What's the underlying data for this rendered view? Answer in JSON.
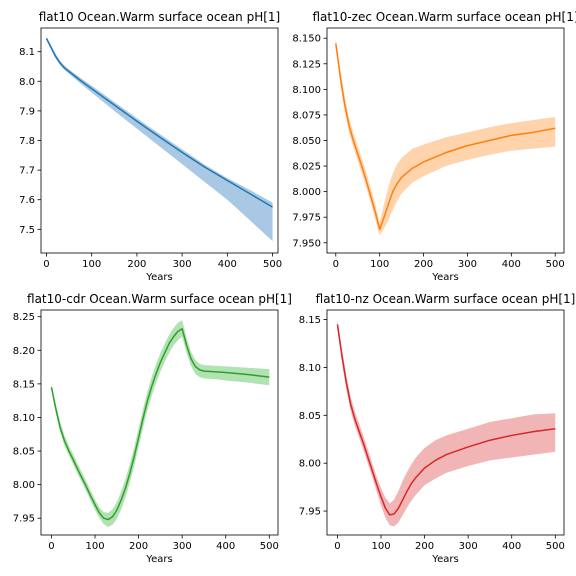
{
  "chart_data": [
    {
      "type": "line",
      "title": "flat10 Ocean.Warm surface ocean pH[1]",
      "xlabel": "Years",
      "ylabel": "",
      "xlim": [
        -12,
        512
      ],
      "ylim": [
        7.42,
        8.18
      ],
      "xticks": [
        0,
        100,
        200,
        300,
        400,
        500
      ],
      "yticks": [
        7.5,
        7.6,
        7.7,
        7.8,
        7.9,
        8.0,
        8.1
      ],
      "ytick_labels": [
        "7.5",
        "7.6",
        "7.7",
        "7.8",
        "7.9",
        "8.0",
        "8.1"
      ],
      "grid": false,
      "series": [
        {
          "color": "#1f77b4",
          "band_color": "#a8c8e3",
          "x": [
            0,
            10,
            20,
            30,
            40,
            50,
            75,
            100,
            150,
            200,
            250,
            300,
            350,
            400,
            450,
            500
          ],
          "values": [
            8.145,
            8.115,
            8.085,
            8.062,
            8.045,
            8.033,
            8.003,
            7.975,
            7.92,
            7.865,
            7.812,
            7.76,
            7.71,
            7.665,
            7.62,
            7.575
          ],
          "lower": [
            8.14,
            8.108,
            8.078,
            8.055,
            8.038,
            8.025,
            7.993,
            7.962,
            7.9,
            7.84,
            7.78,
            7.72,
            7.66,
            7.6,
            7.53,
            7.46
          ],
          "upper": [
            8.15,
            8.122,
            8.093,
            8.07,
            8.053,
            8.04,
            8.012,
            7.985,
            7.93,
            7.875,
            7.822,
            7.77,
            7.718,
            7.673,
            7.633,
            7.59
          ]
        }
      ]
    },
    {
      "type": "line",
      "title": "flat10-zec Ocean.Warm surface ocean pH[1]",
      "xlabel": "Years",
      "ylabel": "",
      "xlim": [
        -20,
        520
      ],
      "ylim": [
        7.94,
        8.16
      ],
      "xticks": [
        0,
        100,
        200,
        300,
        400,
        500
      ],
      "yticks": [
        7.95,
        7.975,
        8.0,
        8.025,
        8.05,
        8.075,
        8.1,
        8.125,
        8.15
      ],
      "ytick_labels": [
        "7.950",
        "7.975",
        "8.000",
        "8.025",
        "8.050",
        "8.075",
        "8.100",
        "8.125",
        "8.150"
      ],
      "grid": false,
      "series": [
        {
          "color": "#ff7f0e",
          "band_color": "#ffd4ad",
          "x": [
            0,
            10,
            20,
            30,
            40,
            50,
            60,
            70,
            80,
            90,
            100,
            110,
            120,
            130,
            140,
            150,
            175,
            200,
            250,
            300,
            350,
            400,
            450,
            500
          ],
          "values": [
            8.145,
            8.113,
            8.086,
            8.065,
            8.05,
            8.037,
            8.024,
            8.01,
            7.995,
            7.98,
            7.963,
            7.975,
            7.988,
            8.0,
            8.008,
            8.014,
            8.023,
            8.029,
            8.038,
            8.045,
            8.05,
            8.055,
            8.058,
            8.062
          ],
          "lower": [
            8.14,
            8.106,
            8.079,
            8.058,
            8.043,
            8.03,
            8.017,
            8.003,
            7.988,
            7.973,
            7.957,
            7.964,
            7.972,
            7.982,
            7.991,
            7.998,
            8.009,
            8.015,
            8.025,
            8.031,
            8.036,
            8.04,
            8.042,
            8.044
          ],
          "upper": [
            8.15,
            8.12,
            8.094,
            8.073,
            8.058,
            8.045,
            8.032,
            8.018,
            8.003,
            7.988,
            7.97,
            7.988,
            8.005,
            8.018,
            8.027,
            8.033,
            8.042,
            8.046,
            8.053,
            8.058,
            8.063,
            8.067,
            8.07,
            8.073
          ]
        }
      ]
    },
    {
      "type": "line",
      "title": "flat10-cdr Ocean.Warm surface ocean pH[1]",
      "xlabel": "Years",
      "ylabel": "",
      "xlim": [
        -24,
        520
      ],
      "ylim": [
        7.925,
        8.26
      ],
      "xticks": [
        0,
        100,
        200,
        300,
        400,
        500
      ],
      "yticks": [
        7.95,
        8.0,
        8.05,
        8.1,
        8.15,
        8.2,
        8.25
      ],
      "ytick_labels": [
        "7.95",
        "8.00",
        "8.05",
        "8.10",
        "8.15",
        "8.20",
        "8.25"
      ],
      "grid": false,
      "series": [
        {
          "color": "#2ca02c",
          "band_color": "#b2e2b2",
          "x": [
            0,
            10,
            20,
            30,
            40,
            50,
            60,
            70,
            80,
            90,
            100,
            110,
            120,
            130,
            140,
            150,
            160,
            170,
            180,
            190,
            200,
            210,
            220,
            230,
            240,
            250,
            260,
            270,
            280,
            290,
            300,
            310,
            320,
            330,
            340,
            350,
            375,
            400,
            450,
            500
          ],
          "values": [
            8.145,
            8.113,
            8.085,
            8.065,
            8.05,
            8.037,
            8.023,
            8.01,
            7.997,
            7.983,
            7.97,
            7.958,
            7.95,
            7.948,
            7.952,
            7.962,
            7.977,
            7.995,
            8.017,
            8.042,
            8.07,
            8.098,
            8.124,
            8.146,
            8.165,
            8.182,
            8.196,
            8.21,
            8.22,
            8.228,
            8.232,
            8.208,
            8.188,
            8.176,
            8.171,
            8.169,
            8.168,
            8.167,
            8.164,
            8.16
          ],
          "lower": [
            8.14,
            8.106,
            8.078,
            8.058,
            8.043,
            8.03,
            8.016,
            8.003,
            7.99,
            7.976,
            7.962,
            7.95,
            7.941,
            7.937,
            7.94,
            7.949,
            7.963,
            7.981,
            8.003,
            8.028,
            8.056,
            8.084,
            8.11,
            8.132,
            8.151,
            8.168,
            8.183,
            8.196,
            8.207,
            8.215,
            8.22,
            8.196,
            8.177,
            8.165,
            8.16,
            8.158,
            8.157,
            8.155,
            8.152,
            8.148
          ],
          "upper": [
            8.15,
            8.12,
            8.093,
            8.073,
            8.058,
            8.045,
            8.031,
            8.018,
            8.005,
            7.991,
            7.978,
            7.966,
            7.959,
            7.958,
            7.963,
            7.974,
            7.99,
            8.009,
            8.031,
            8.056,
            8.084,
            8.112,
            8.138,
            8.16,
            8.179,
            8.196,
            8.21,
            8.223,
            8.233,
            8.241,
            8.245,
            8.219,
            8.198,
            8.186,
            8.18,
            8.178,
            8.177,
            8.176,
            8.174,
            8.172
          ]
        }
      ]
    },
    {
      "type": "line",
      "title": "flat10-nz Ocean.Warm surface ocean pH[1]",
      "xlabel": "Years",
      "ylabel": "",
      "xlim": [
        -24,
        520
      ],
      "ylim": [
        7.925,
        8.16
      ],
      "xticks": [
        0,
        100,
        200,
        300,
        400,
        500
      ],
      "yticks": [
        7.95,
        8.0,
        8.05,
        8.1,
        8.15
      ],
      "ytick_labels": [
        "7.95",
        "8.00",
        "8.05",
        "8.10",
        "8.15"
      ],
      "grid": false,
      "series": [
        {
          "color": "#d62728",
          "band_color": "#f1b5b6",
          "x": [
            0,
            10,
            20,
            30,
            40,
            50,
            60,
            70,
            80,
            90,
            100,
            110,
            120,
            130,
            140,
            150,
            160,
            170,
            180,
            200,
            225,
            250,
            300,
            350,
            400,
            450,
            500
          ],
          "values": [
            8.145,
            8.113,
            8.085,
            8.062,
            8.046,
            8.033,
            8.02,
            8.006,
            7.992,
            7.978,
            7.965,
            7.953,
            7.946,
            7.947,
            7.953,
            7.962,
            7.971,
            7.979,
            7.985,
            7.995,
            8.003,
            8.009,
            8.017,
            8.024,
            8.029,
            8.033,
            8.036
          ],
          "lower": [
            8.14,
            8.106,
            8.078,
            8.055,
            8.039,
            8.026,
            8.013,
            7.999,
            7.985,
            7.97,
            7.956,
            7.943,
            7.935,
            7.934,
            7.938,
            7.946,
            7.954,
            7.961,
            7.967,
            7.977,
            7.984,
            7.99,
            7.997,
            8.003,
            8.006,
            8.009,
            8.012
          ],
          "upper": [
            8.15,
            8.12,
            8.093,
            8.07,
            8.054,
            8.041,
            8.028,
            8.014,
            8.0,
            7.986,
            7.974,
            7.964,
            7.958,
            7.962,
            7.971,
            7.982,
            7.991,
            7.999,
            8.006,
            8.016,
            8.024,
            8.029,
            8.036,
            8.043,
            8.047,
            8.051,
            8.052
          ]
        }
      ]
    }
  ]
}
